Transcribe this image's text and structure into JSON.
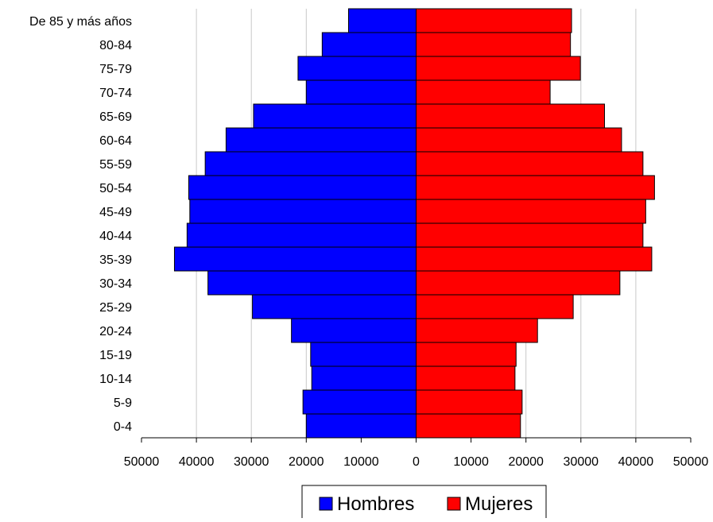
{
  "chart_data": {
    "type": "bar",
    "orientation": "horizontal-population-pyramid",
    "categories": [
      "0-4",
      "5-9",
      "10-14",
      "15-19",
      "20-24",
      "25-29",
      "30-34",
      "35-39",
      "40-44",
      "45-49",
      "50-54",
      "55-59",
      "60-64",
      "65-69",
      "70-74",
      "75-79",
      "80-84",
      "De 85 y más años"
    ],
    "series": [
      {
        "name": "Hombres",
        "color": "#0000ff",
        "values": [
          20000,
          20600,
          19000,
          19200,
          22700,
          29800,
          37900,
          44000,
          41700,
          41200,
          41400,
          38400,
          34600,
          29600,
          20000,
          21500,
          17100,
          12300
        ]
      },
      {
        "name": "Mujeres",
        "color": "#ff0000",
        "values": [
          19000,
          19300,
          18000,
          18200,
          22100,
          28600,
          37100,
          42900,
          41300,
          41800,
          43400,
          41300,
          37400,
          34300,
          24400,
          29900,
          28100,
          28300
        ]
      }
    ],
    "x_ticks": [
      "50000",
      "40000",
      "30000",
      "20000",
      "10000",
      "0",
      "10000",
      "20000",
      "30000",
      "40000",
      "50000"
    ],
    "xlim": [
      -50000,
      50000
    ],
    "grid": "vertical",
    "legend_position": "bottom"
  }
}
